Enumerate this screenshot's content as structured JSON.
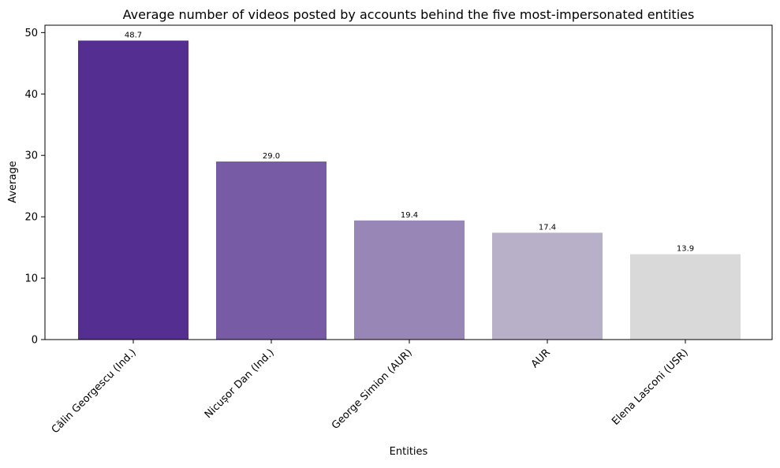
{
  "chart_data": {
    "type": "bar",
    "title": "Average number of videos posted by accounts behind the five most-impersonated entities",
    "xlabel": "Entities",
    "ylabel": "Average",
    "categories": [
      "Călin Georgescu (Ind.)",
      "Nicușor Dan (Ind.)",
      "George Simion (AUR)",
      "AUR",
      "Elena Lasconi (USR)"
    ],
    "values": [
      48.7,
      29.0,
      19.4,
      17.4,
      13.9
    ],
    "value_labels": [
      "48.7",
      "29.0",
      "19.4",
      "17.4",
      "13.9"
    ],
    "bar_colors": [
      "#542e91",
      "#775ba4",
      "#9886b6",
      "#b8afc9",
      "#d9d9d9"
    ],
    "ylim": [
      0,
      51.2
    ],
    "yticks": [
      0,
      10,
      20,
      30,
      40,
      50
    ],
    "grid": false,
    "legend": "none"
  }
}
